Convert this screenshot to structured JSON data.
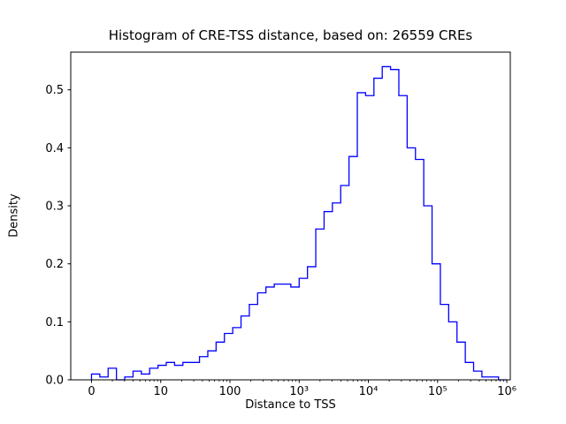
{
  "figure": {
    "background_color": "#ffffff",
    "axis_color": "#000000",
    "text_color": "#000000"
  },
  "chart_data": {
    "type": "bar",
    "subtype": "step-histogram",
    "title": "Histogram of CRE-TSS distance, based on: 26559 CREs",
    "n_cres": 26559,
    "xlabel": "Distance to TSS",
    "ylabel": "Density",
    "x_scale": "log10",
    "xlim_log10": [
      -0.3,
      6.05
    ],
    "ylim": [
      0,
      0.565
    ],
    "grid": false,
    "legend": "none",
    "line_color": "#0000ff",
    "x_ticks": [
      {
        "log_value": 0,
        "label": "0"
      },
      {
        "log_value": 1,
        "label": "10"
      },
      {
        "log_value": 2,
        "label": "100"
      },
      {
        "log_value": 3,
        "label": "10³"
      },
      {
        "log_value": 4,
        "label": "10⁴"
      },
      {
        "log_value": 5,
        "label": "10⁵"
      },
      {
        "log_value": 6,
        "label": "10⁶"
      }
    ],
    "y_ticks": [
      0.0,
      0.1,
      0.2,
      0.3,
      0.4,
      0.5
    ],
    "bin_start_log10": 0.0,
    "bin_width_log10": 0.12,
    "densities": [
      0.01,
      0.005,
      0.02,
      0.0,
      0.005,
      0.015,
      0.01,
      0.02,
      0.025,
      0.03,
      0.025,
      0.03,
      0.03,
      0.04,
      0.05,
      0.065,
      0.08,
      0.09,
      0.11,
      0.13,
      0.15,
      0.16,
      0.165,
      0.165,
      0.16,
      0.175,
      0.195,
      0.26,
      0.29,
      0.305,
      0.335,
      0.385,
      0.495,
      0.49,
      0.52,
      0.54,
      0.535,
      0.49,
      0.4,
      0.38,
      0.3,
      0.2,
      0.13,
      0.1,
      0.065,
      0.03,
      0.015,
      0.005,
      0.005,
      0.0
    ]
  }
}
